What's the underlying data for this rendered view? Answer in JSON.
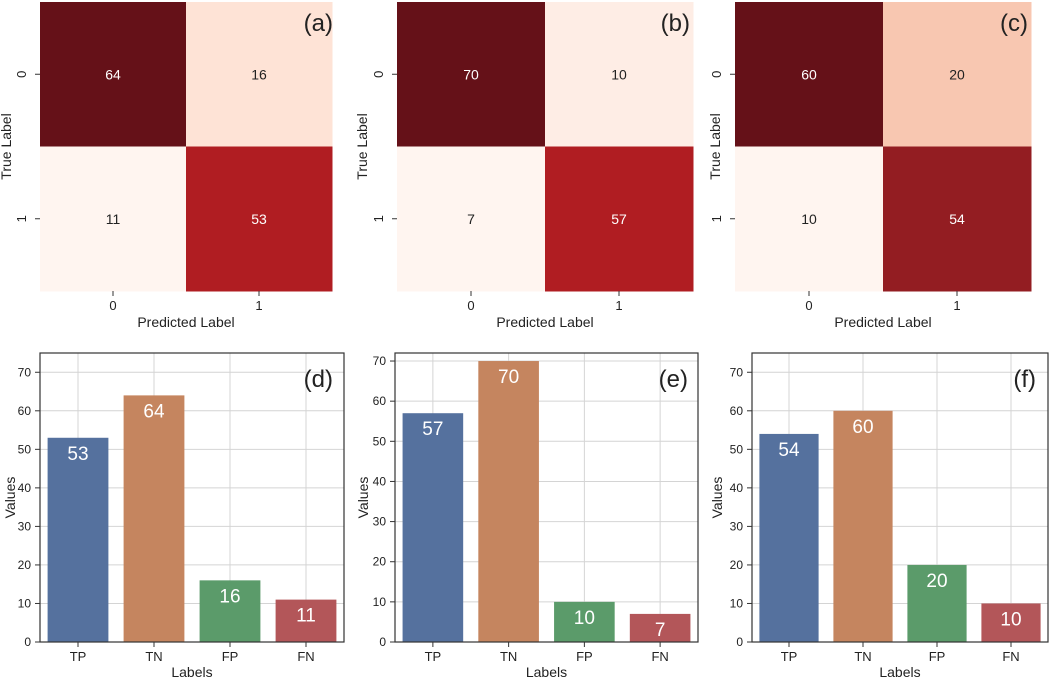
{
  "chart_data": [
    {
      "type": "heatmap",
      "panel": "(a)",
      "xlabel": "Predicted Label",
      "ylabel": "True Label",
      "xticks": [
        "0",
        "1"
      ],
      "yticks": [
        "0",
        "1"
      ],
      "matrix": [
        [
          64,
          16
        ],
        [
          11,
          53
        ]
      ],
      "cell_colors": [
        [
          "#651118",
          "#fee3d6"
        ],
        [
          "#fff5f0",
          "#b01d22"
        ]
      ],
      "text_colors": [
        [
          "#ffffff",
          "#222222"
        ],
        [
          "#222222",
          "#ffffff"
        ]
      ]
    },
    {
      "type": "heatmap",
      "panel": "(b)",
      "xlabel": "Predicted Label",
      "ylabel": "True Label",
      "xticks": [
        "0",
        "1"
      ],
      "yticks": [
        "0",
        "1"
      ],
      "matrix": [
        [
          70,
          10
        ],
        [
          7,
          57
        ]
      ],
      "cell_colors": [
        [
          "#651118",
          "#feede5"
        ],
        [
          "#fff5f0",
          "#b01d22"
        ]
      ],
      "text_colors": [
        [
          "#ffffff",
          "#222222"
        ],
        [
          "#222222",
          "#ffffff"
        ]
      ]
    },
    {
      "type": "heatmap",
      "panel": "(c)",
      "xlabel": "Predicted Label",
      "ylabel": "True Label",
      "xticks": [
        "0",
        "1"
      ],
      "yticks": [
        "0",
        "1"
      ],
      "matrix": [
        [
          60,
          20
        ],
        [
          10,
          54
        ]
      ],
      "cell_colors": [
        [
          "#651118",
          "#f8c7b1"
        ],
        [
          "#fff5f0",
          "#931d22"
        ]
      ],
      "text_colors": [
        [
          "#ffffff",
          "#222222"
        ],
        [
          "#222222",
          "#ffffff"
        ]
      ]
    },
    {
      "type": "bar",
      "panel": "(d)",
      "categories": [
        "TP",
        "TN",
        "FP",
        "FN"
      ],
      "values": [
        53,
        64,
        16,
        11
      ],
      "colors": [
        "#55719e",
        "#c5855f",
        "#5b9b6a",
        "#b35659"
      ],
      "xlabel": "Labels",
      "ylabel": "Values",
      "ylim": [
        0,
        75
      ],
      "yticks": [
        0,
        10,
        20,
        30,
        40,
        50,
        60,
        70
      ],
      "grid": true
    },
    {
      "type": "bar",
      "panel": "(e)",
      "categories": [
        "TP",
        "TN",
        "FP",
        "FN"
      ],
      "values": [
        57,
        70,
        10,
        7
      ],
      "colors": [
        "#55719e",
        "#c5855f",
        "#5b9b6a",
        "#b35659"
      ],
      "xlabel": "Labels",
      "ylabel": "Values",
      "ylim": [
        0,
        72
      ],
      "yticks": [
        0,
        10,
        20,
        30,
        40,
        50,
        60,
        70
      ],
      "grid": true
    },
    {
      "type": "bar",
      "panel": "(f)",
      "categories": [
        "TP",
        "TN",
        "FP",
        "FN"
      ],
      "values": [
        54,
        60,
        20,
        10
      ],
      "colors": [
        "#55719e",
        "#c5855f",
        "#5b9b6a",
        "#b35659"
      ],
      "xlabel": "Labels",
      "ylabel": "Values",
      "ylim": [
        0,
        75
      ],
      "yticks": [
        0,
        10,
        20,
        30,
        40,
        50,
        60,
        70
      ],
      "grid": true
    }
  ]
}
